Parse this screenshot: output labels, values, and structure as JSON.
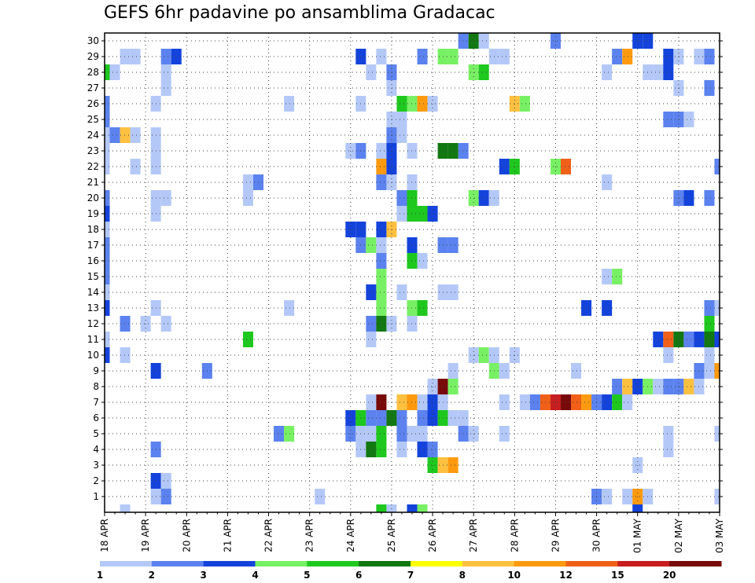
{
  "chart_data": {
    "type": "heatmap",
    "title": "GEFS 6hr padavine po ansamblima Gradacac",
    "x_tick_labels": [
      "18 APR",
      "19 APR",
      "20 APR",
      "21 APR",
      "22 APR",
      "23 APR",
      "24 APR",
      "25 APR",
      "26 APR",
      "27 APR",
      "28 APR",
      "29 APR",
      "30 APR",
      "01 MAY",
      "02 MAY",
      "03 MAY"
    ],
    "y_tick_labels": [
      1,
      2,
      3,
      4,
      5,
      6,
      7,
      8,
      9,
      10,
      11,
      12,
      13,
      14,
      15,
      16,
      17,
      18,
      19,
      20,
      21,
      22,
      23,
      24,
      25,
      26,
      27,
      28,
      29,
      30
    ],
    "n_steps": 61,
    "n_members": 30,
    "grid": true,
    "colorbar": {
      "levels": [
        1,
        2,
        3,
        4,
        5,
        6,
        7,
        8,
        10,
        12,
        15,
        20
      ],
      "colors": [
        "#b4c8f8",
        "#5b82ee",
        "#1443dc",
        "#78f064",
        "#1ec81e",
        "#127812",
        "#ffff00",
        "#ffc040",
        "#ff9a10",
        "#f06018",
        "#c81e1e",
        "#780a0a"
      ]
    },
    "cells": [
      [
        30,
        35,
        2
      ],
      [
        30,
        36,
        6
      ],
      [
        30,
        37,
        1
      ],
      [
        30,
        44,
        2
      ],
      [
        30,
        52,
        3
      ],
      [
        30,
        53,
        3
      ],
      [
        29,
        2,
        1
      ],
      [
        29,
        3,
        1
      ],
      [
        29,
        6,
        2
      ],
      [
        29,
        7,
        3
      ],
      [
        29,
        25,
        3
      ],
      [
        29,
        27,
        1
      ],
      [
        29,
        31,
        2
      ],
      [
        29,
        33,
        4
      ],
      [
        29,
        34,
        4
      ],
      [
        29,
        38,
        1
      ],
      [
        29,
        39,
        1
      ],
      [
        29,
        50,
        2
      ],
      [
        29,
        51,
        10
      ],
      [
        29,
        55,
        3
      ],
      [
        29,
        56,
        1
      ],
      [
        29,
        58,
        1
      ],
      [
        29,
        59,
        2
      ],
      [
        28,
        0,
        5
      ],
      [
        28,
        1,
        1
      ],
      [
        28,
        6,
        1
      ],
      [
        28,
        26,
        1
      ],
      [
        28,
        28,
        2
      ],
      [
        28,
        36,
        4
      ],
      [
        28,
        37,
        5
      ],
      [
        28,
        49,
        1
      ],
      [
        28,
        53,
        1
      ],
      [
        28,
        54,
        1
      ],
      [
        28,
        55,
        3
      ],
      [
        27,
        6,
        1
      ],
      [
        27,
        28,
        1
      ],
      [
        27,
        56,
        1
      ],
      [
        27,
        59,
        2
      ],
      [
        26,
        0,
        2
      ],
      [
        26,
        5,
        1
      ],
      [
        26,
        18,
        1
      ],
      [
        26,
        25,
        1
      ],
      [
        26,
        29,
        5
      ],
      [
        26,
        30,
        4
      ],
      [
        26,
        31,
        10
      ],
      [
        26,
        32,
        1
      ],
      [
        26,
        40,
        8
      ],
      [
        26,
        41,
        4
      ],
      [
        25,
        0,
        2
      ],
      [
        25,
        28,
        1
      ],
      [
        25,
        29,
        1
      ],
      [
        25,
        55,
        2
      ],
      [
        25,
        56,
        2
      ],
      [
        25,
        57,
        1
      ],
      [
        24,
        0,
        1
      ],
      [
        24,
        1,
        2
      ],
      [
        24,
        2,
        8
      ],
      [
        24,
        3,
        1
      ],
      [
        24,
        5,
        1
      ],
      [
        24,
        28,
        2
      ],
      [
        24,
        29,
        1
      ],
      [
        23,
        0,
        1
      ],
      [
        23,
        5,
        1
      ],
      [
        23,
        24,
        1
      ],
      [
        23,
        25,
        2
      ],
      [
        23,
        27,
        1
      ],
      [
        23,
        28,
        3
      ],
      [
        23,
        30,
        1
      ],
      [
        23,
        33,
        6
      ],
      [
        23,
        34,
        6
      ],
      [
        23,
        35,
        2
      ],
      [
        22,
        0,
        1
      ],
      [
        22,
        3,
        1
      ],
      [
        22,
        5,
        1
      ],
      [
        22,
        27,
        10
      ],
      [
        22,
        28,
        3
      ],
      [
        22,
        39,
        3
      ],
      [
        22,
        40,
        5
      ],
      [
        22,
        44,
        4
      ],
      [
        22,
        45,
        12
      ],
      [
        22,
        60,
        2
      ],
      [
        21,
        14,
        1
      ],
      [
        21,
        15,
        2
      ],
      [
        21,
        27,
        2
      ],
      [
        21,
        28,
        1
      ],
      [
        21,
        30,
        1
      ],
      [
        21,
        49,
        1
      ],
      [
        20,
        0,
        2
      ],
      [
        20,
        5,
        1
      ],
      [
        20,
        6,
        1
      ],
      [
        20,
        14,
        1
      ],
      [
        20,
        29,
        2
      ],
      [
        20,
        30,
        5
      ],
      [
        20,
        36,
        4
      ],
      [
        20,
        37,
        3
      ],
      [
        20,
        38,
        1
      ],
      [
        20,
        56,
        2
      ],
      [
        20,
        57,
        3
      ],
      [
        20,
        59,
        2
      ],
      [
        19,
        0,
        3
      ],
      [
        19,
        5,
        1
      ],
      [
        19,
        29,
        1
      ],
      [
        19,
        30,
        5
      ],
      [
        19,
        31,
        5
      ],
      [
        19,
        32,
        3
      ],
      [
        18,
        0,
        1
      ],
      [
        18,
        24,
        3
      ],
      [
        18,
        25,
        3
      ],
      [
        18,
        27,
        3
      ],
      [
        18,
        28,
        8
      ],
      [
        17,
        0,
        2
      ],
      [
        17,
        25,
        2
      ],
      [
        17,
        26,
        4
      ],
      [
        17,
        27,
        1
      ],
      [
        17,
        30,
        3
      ],
      [
        17,
        33,
        2
      ],
      [
        17,
        34,
        2
      ],
      [
        16,
        0,
        2
      ],
      [
        16,
        27,
        2
      ],
      [
        16,
        30,
        5
      ],
      [
        16,
        31,
        1
      ],
      [
        15,
        0,
        2
      ],
      [
        15,
        27,
        4
      ],
      [
        15,
        49,
        1
      ],
      [
        15,
        50,
        4
      ],
      [
        14,
        0,
        1
      ],
      [
        14,
        26,
        3
      ],
      [
        14,
        27,
        4
      ],
      [
        14,
        29,
        1
      ],
      [
        14,
        33,
        1
      ],
      [
        14,
        34,
        1
      ],
      [
        13,
        0,
        3
      ],
      [
        13,
        5,
        1
      ],
      [
        13,
        18,
        1
      ],
      [
        13,
        27,
        4
      ],
      [
        13,
        30,
        4
      ],
      [
        13,
        31,
        5
      ],
      [
        13,
        47,
        3
      ],
      [
        13,
        49,
        3
      ],
      [
        13,
        59,
        2
      ],
      [
        13,
        60,
        1
      ],
      [
        12,
        2,
        2
      ],
      [
        12,
        4,
        1
      ],
      [
        12,
        6,
        1
      ],
      [
        12,
        26,
        2
      ],
      [
        12,
        27,
        6
      ],
      [
        12,
        28,
        1
      ],
      [
        12,
        30,
        1
      ],
      [
        12,
        59,
        5
      ],
      [
        11,
        0,
        1
      ],
      [
        11,
        14,
        5
      ],
      [
        11,
        26,
        1
      ],
      [
        11,
        54,
        3
      ],
      [
        11,
        55,
        12
      ],
      [
        11,
        56,
        6
      ],
      [
        11,
        57,
        2
      ],
      [
        11,
        58,
        3
      ],
      [
        11,
        59,
        6
      ],
      [
        11,
        60,
        3
      ],
      [
        10,
        0,
        3
      ],
      [
        10,
        2,
        1
      ],
      [
        10,
        36,
        1
      ],
      [
        10,
        37,
        4
      ],
      [
        10,
        38,
        1
      ],
      [
        10,
        40,
        1
      ],
      [
        10,
        55,
        1
      ],
      [
        10,
        59,
        1
      ],
      [
        9,
        5,
        3
      ],
      [
        9,
        10,
        2
      ],
      [
        9,
        34,
        1
      ],
      [
        9,
        38,
        4
      ],
      [
        9,
        39,
        1
      ],
      [
        9,
        46,
        1
      ],
      [
        9,
        58,
        2
      ],
      [
        9,
        59,
        1
      ],
      [
        9,
        60,
        10
      ],
      [
        8,
        32,
        1
      ],
      [
        8,
        33,
        20
      ],
      [
        8,
        34,
        4
      ],
      [
        8,
        50,
        2
      ],
      [
        8,
        51,
        8
      ],
      [
        8,
        52,
        3
      ],
      [
        8,
        53,
        4
      ],
      [
        8,
        54,
        1
      ],
      [
        8,
        55,
        2
      ],
      [
        8,
        56,
        2
      ],
      [
        8,
        57,
        8
      ],
      [
        8,
        58,
        1
      ],
      [
        7,
        26,
        1
      ],
      [
        7,
        27,
        20
      ],
      [
        7,
        29,
        8
      ],
      [
        7,
        30,
        10
      ],
      [
        7,
        31,
        1
      ],
      [
        7,
        32,
        3
      ],
      [
        7,
        33,
        1
      ],
      [
        7,
        39,
        1
      ],
      [
        7,
        41,
        1
      ],
      [
        7,
        42,
        2
      ],
      [
        7,
        43,
        12
      ],
      [
        7,
        44,
        15
      ],
      [
        7,
        45,
        20
      ],
      [
        7,
        46,
        12
      ],
      [
        7,
        47,
        10
      ],
      [
        7,
        48,
        2
      ],
      [
        7,
        49,
        3
      ],
      [
        7,
        50,
        5
      ],
      [
        7,
        51,
        1
      ],
      [
        6,
        24,
        3
      ],
      [
        6,
        25,
        5
      ],
      [
        6,
        26,
        2
      ],
      [
        6,
        27,
        2
      ],
      [
        6,
        28,
        6
      ],
      [
        6,
        29,
        2
      ],
      [
        6,
        31,
        2
      ],
      [
        6,
        32,
        3
      ],
      [
        6,
        33,
        5
      ],
      [
        6,
        34,
        1
      ],
      [
        6,
        35,
        1
      ],
      [
        5,
        17,
        2
      ],
      [
        5,
        18,
        4
      ],
      [
        5,
        24,
        2
      ],
      [
        5,
        25,
        1
      ],
      [
        5,
        26,
        1
      ],
      [
        5,
        27,
        5
      ],
      [
        5,
        29,
        2
      ],
      [
        5,
        30,
        1
      ],
      [
        5,
        31,
        1
      ],
      [
        5,
        35,
        2
      ],
      [
        5,
        36,
        1
      ],
      [
        5,
        39,
        1
      ],
      [
        5,
        55,
        1
      ],
      [
        5,
        60,
        1
      ],
      [
        4,
        5,
        2
      ],
      [
        4,
        25,
        1
      ],
      [
        4,
        26,
        6
      ],
      [
        4,
        27,
        5
      ],
      [
        4,
        29,
        1
      ],
      [
        4,
        31,
        3
      ],
      [
        4,
        32,
        2
      ],
      [
        4,
        55,
        1
      ],
      [
        3,
        32,
        5
      ],
      [
        3,
        33,
        8
      ],
      [
        3,
        34,
        10
      ],
      [
        3,
        52,
        1
      ],
      [
        2,
        5,
        3
      ],
      [
        2,
        6,
        1
      ],
      [
        1,
        5,
        1
      ],
      [
        1,
        6,
        2
      ],
      [
        1,
        21,
        1
      ],
      [
        1,
        48,
        2
      ],
      [
        1,
        49,
        1
      ],
      [
        1,
        51,
        1
      ],
      [
        1,
        52,
        10
      ],
      [
        1,
        53,
        1
      ],
      [
        1,
        60,
        1
      ],
      [
        0,
        2,
        1
      ],
      [
        0,
        27,
        5
      ],
      [
        0,
        28,
        1
      ],
      [
        0,
        30,
        3
      ],
      [
        0,
        31,
        4
      ],
      [
        0,
        52,
        3
      ]
    ]
  }
}
